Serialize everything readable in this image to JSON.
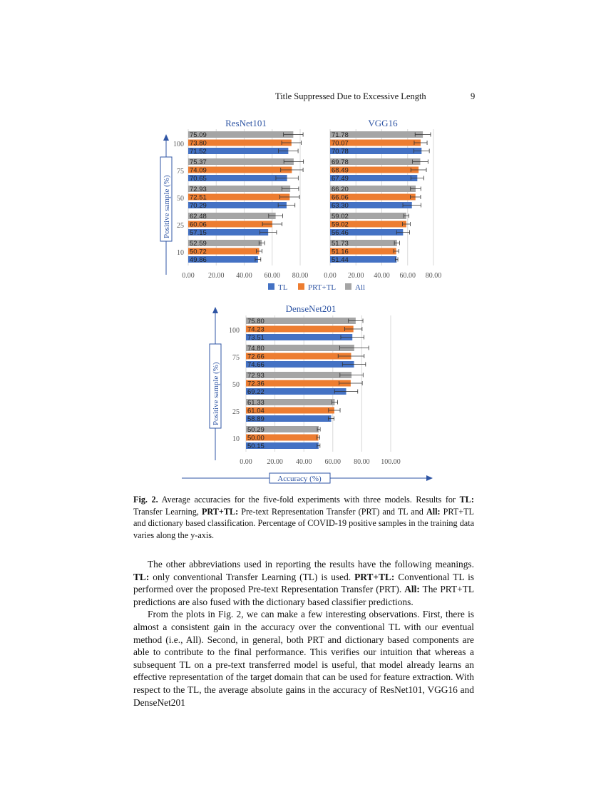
{
  "header": {
    "running_title": "Title Suppressed Due to Excessive Length",
    "page_number": "9"
  },
  "figure": {
    "y_axis_label": "Positive sample (%)",
    "x_axis_label": "Accuracy (%)",
    "legend": [
      "TL",
      "PRT+TL",
      "All"
    ],
    "colors": {
      "TL": "#4472c4",
      "PRT+TL": "#ed7d31",
      "All": "#a5a5a5",
      "title": "#2f55a4"
    }
  },
  "chart_data": [
    {
      "type": "bar",
      "orientation": "horizontal",
      "title": "ResNet101",
      "categories": [
        "100",
        "75",
        "50",
        "25",
        "10"
      ],
      "xlim": [
        0,
        80
      ],
      "xticks": [
        "0.00",
        "20.00",
        "40.00",
        "60.00",
        "80.00"
      ],
      "grid": true,
      "legend": "bottom",
      "series": [
        {
          "name": "All",
          "values": [
            75.09,
            75.37,
            72.93,
            62.48,
            52.59
          ],
          "errors": [
            7,
            7,
            6,
            5,
            2
          ]
        },
        {
          "name": "PRT+TL",
          "values": [
            73.8,
            74.09,
            72.51,
            60.06,
            50.72
          ],
          "errors": [
            7,
            8,
            7,
            7,
            2
          ]
        },
        {
          "name": "TL",
          "values": [
            71.52,
            70.65,
            70.29,
            57.15,
            49.86
          ],
          "errors": [
            7,
            8,
            6,
            6,
            2
          ]
        }
      ]
    },
    {
      "type": "bar",
      "orientation": "horizontal",
      "title": "VGG16",
      "categories": [
        "100",
        "75",
        "50",
        "25",
        "10"
      ],
      "xlim": [
        0,
        80
      ],
      "xticks": [
        "0.00",
        "20.00",
        "40.00",
        "60.00",
        "80.00"
      ],
      "grid": true,
      "legend": "bottom",
      "series": [
        {
          "name": "All",
          "values": [
            71.78,
            69.78,
            66.2,
            59.02,
            51.73
          ],
          "errors": [
            6,
            6,
            4,
            2,
            2
          ]
        },
        {
          "name": "PRT+TL",
          "values": [
            70.07,
            68.49,
            66.06,
            59.02,
            51.16
          ],
          "errors": [
            5,
            6,
            4,
            3,
            2
          ]
        },
        {
          "name": "TL",
          "values": [
            70.78,
            67.49,
            63.3,
            56.46,
            51.44
          ],
          "errors": [
            6,
            5,
            7,
            5,
            1
          ]
        }
      ]
    },
    {
      "type": "bar",
      "orientation": "horizontal",
      "title": "DenseNet201",
      "categories": [
        "100",
        "75",
        "50",
        "25",
        "10"
      ],
      "xlim": [
        0,
        100
      ],
      "xticks": [
        "0.00",
        "20.00",
        "40.00",
        "60.00",
        "80.00",
        "100.00"
      ],
      "grid": true,
      "legend": "none",
      "series": [
        {
          "name": "All",
          "values": [
            75.8,
            74.8,
            72.93,
            61.33,
            50.29
          ],
          "errors": [
            5,
            10,
            8,
            2,
            1
          ]
        },
        {
          "name": "PRT+TL",
          "values": [
            74.23,
            72.66,
            72.36,
            61.04,
            50.0
          ],
          "errors": [
            6,
            9,
            8,
            4,
            1
          ]
        },
        {
          "name": "TL",
          "values": [
            73.51,
            74.66,
            69.22,
            58.89,
            50.15
          ],
          "errors": [
            8,
            8,
            8,
            2,
            1
          ]
        }
      ]
    }
  ],
  "caption": {
    "label": "Fig. 2.",
    "t1": " Average accuracies for the five-fold experiments with three models. Results for ",
    "b1": "TL:",
    "t2": " Transfer Learning, ",
    "b2": "PRT+TL:",
    "t3": " Pre-text Representation Transfer (PRT) and TL and ",
    "b3": "All:",
    "t4": " PRT+TL and dictionary based classification. Percentage of COVID-19 positive samples in the training data varies along the y-axis."
  },
  "body": {
    "p1": {
      "t1": "The other abbreviations used in reporting the results have the following meanings. ",
      "b1": "TL:",
      "t2": " only conventional Transfer Learning (TL) is used. ",
      "b2": "PRT+TL:",
      "t3": " Conventional TL is performed over the proposed Pre-text Representation Transfer (PRT). ",
      "b3": "All:",
      "t4": " The PRT+TL predictions are also fused with the dictionary based classifier predictions."
    },
    "p2": "From the plots in Fig. 2, we can make a few interesting observations. First, there is almost a consistent gain in the accuracy over the conventional TL with our eventual method (i.e., All). Second, in general, both PRT and dictionary based components are able to contribute to the final performance. This verifies our intuition that whereas a subsequent TL on a pre-text transferred model is useful, that model already learns an effective representation of the target domain that can be used for feature extraction. With respect to the TL, the average absolute gains in the accuracy of ResNet101, VGG16 and DenseNet201"
  }
}
